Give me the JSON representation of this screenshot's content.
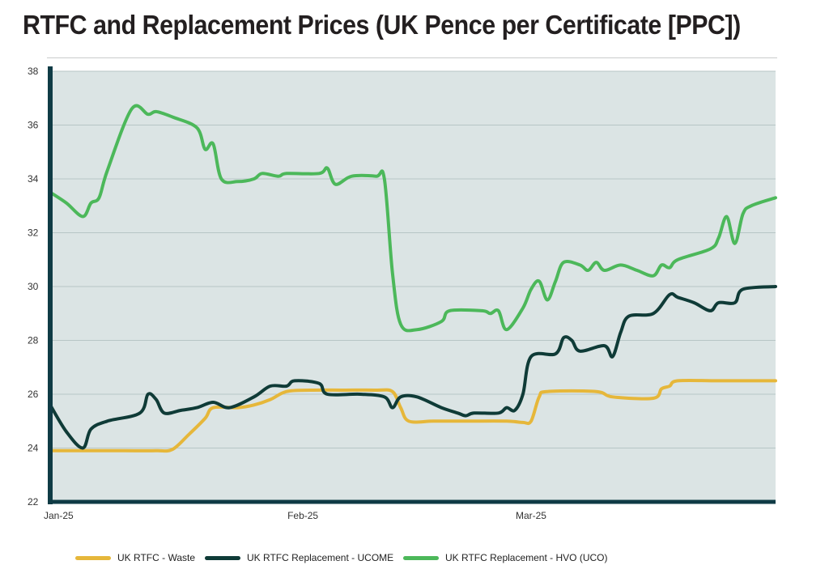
{
  "page": {
    "title": "RTFC and Replacement Prices (UK Pence per Certificate [PPC])"
  },
  "colors": {
    "plot_bg": "#dbe4e4",
    "axis": "#0f3b45",
    "grid": "#b7c6c6"
  },
  "chart_data": {
    "type": "line",
    "title": "RTFC and Replacement Prices (UK Pence per Certificate [PPC])",
    "xlabel": "",
    "ylabel": "",
    "x_range": [
      "2025-01-01",
      "2025-03-31"
    ],
    "x_ticks": [
      {
        "date": "2025-01-01",
        "label": "Jan-25"
      },
      {
        "date": "2025-02-01",
        "label": "Feb-25"
      },
      {
        "date": "2025-03-01",
        "label": "Mar-25"
      }
    ],
    "ylim": [
      22,
      38
    ],
    "y_ticks": [
      22,
      24,
      26,
      28,
      30,
      32,
      34,
      36,
      38
    ],
    "grid": true,
    "legend_position": "bottom",
    "series": [
      {
        "name": "UK RTFC - Waste",
        "color": "#e6b73a",
        "points": [
          [
            "2025-01-01",
            23.9
          ],
          [
            "2025-01-06",
            23.9
          ],
          [
            "2025-01-10",
            23.9
          ],
          [
            "2025-01-14",
            23.9
          ],
          [
            "2025-01-16",
            23.95
          ],
          [
            "2025-01-18",
            24.5
          ],
          [
            "2025-01-20",
            25.1
          ],
          [
            "2025-01-21",
            25.5
          ],
          [
            "2025-01-24",
            25.5
          ],
          [
            "2025-01-26",
            25.6
          ],
          [
            "2025-01-28",
            25.8
          ],
          [
            "2025-01-30",
            26.1
          ],
          [
            "2025-02-02",
            26.15
          ],
          [
            "2025-02-06",
            26.15
          ],
          [
            "2025-02-10",
            26.15
          ],
          [
            "2025-02-12",
            26.1
          ],
          [
            "2025-02-13",
            25.5
          ],
          [
            "2025-02-14",
            25.0
          ],
          [
            "2025-02-17",
            25.0
          ],
          [
            "2025-02-21",
            25.0
          ],
          [
            "2025-02-26",
            25.0
          ],
          [
            "2025-02-28",
            24.95
          ],
          [
            "2025-03-01",
            25.0
          ],
          [
            "2025-03-02",
            25.9
          ],
          [
            "2025-03-03",
            26.1
          ],
          [
            "2025-03-09",
            26.1
          ],
          [
            "2025-03-11",
            25.9
          ],
          [
            "2025-03-16",
            25.85
          ],
          [
            "2025-03-17",
            26.2
          ],
          [
            "2025-03-18",
            26.3
          ],
          [
            "2025-03-19",
            26.5
          ],
          [
            "2025-03-24",
            26.5
          ],
          [
            "2025-03-31",
            26.5
          ]
        ]
      },
      {
        "name": "UK RTFC Replacement - UCOME",
        "color": "#0f3b37",
        "points": [
          [
            "2025-01-01",
            25.6
          ],
          [
            "2025-01-03",
            24.6
          ],
          [
            "2025-01-05",
            24.0
          ],
          [
            "2025-01-06",
            24.7
          ],
          [
            "2025-01-08",
            25.0
          ],
          [
            "2025-01-12",
            25.3
          ],
          [
            "2025-01-13",
            26.0
          ],
          [
            "2025-01-14",
            25.8
          ],
          [
            "2025-01-15",
            25.3
          ],
          [
            "2025-01-17",
            25.4
          ],
          [
            "2025-01-19",
            25.5
          ],
          [
            "2025-01-21",
            25.7
          ],
          [
            "2025-01-23",
            25.5
          ],
          [
            "2025-01-26",
            25.9
          ],
          [
            "2025-01-28",
            26.3
          ],
          [
            "2025-01-30",
            26.3
          ],
          [
            "2025-01-31",
            26.5
          ],
          [
            "2025-02-03",
            26.4
          ],
          [
            "2025-02-04",
            26.0
          ],
          [
            "2025-02-08",
            26.0
          ],
          [
            "2025-02-11",
            25.9
          ],
          [
            "2025-02-12",
            25.5
          ],
          [
            "2025-02-13",
            25.9
          ],
          [
            "2025-02-15",
            25.9
          ],
          [
            "2025-02-18",
            25.5
          ],
          [
            "2025-02-20",
            25.3
          ],
          [
            "2025-02-21",
            25.2
          ],
          [
            "2025-02-22",
            25.3
          ],
          [
            "2025-02-25",
            25.3
          ],
          [
            "2025-02-26",
            25.5
          ],
          [
            "2025-02-27",
            25.4
          ],
          [
            "2025-02-28",
            26.0
          ],
          [
            "2025-03-01",
            27.4
          ],
          [
            "2025-03-04",
            27.5
          ],
          [
            "2025-03-05",
            28.1
          ],
          [
            "2025-03-06",
            28.0
          ],
          [
            "2025-03-07",
            27.6
          ],
          [
            "2025-03-10",
            27.8
          ],
          [
            "2025-03-11",
            27.4
          ],
          [
            "2025-03-12",
            28.3
          ],
          [
            "2025-03-13",
            28.9
          ],
          [
            "2025-03-16",
            29.0
          ],
          [
            "2025-03-18",
            29.7
          ],
          [
            "2025-03-19",
            29.6
          ],
          [
            "2025-03-21",
            29.4
          ],
          [
            "2025-03-23",
            29.1
          ],
          [
            "2025-03-24",
            29.4
          ],
          [
            "2025-03-26",
            29.4
          ],
          [
            "2025-03-27",
            29.9
          ],
          [
            "2025-03-31",
            30.0
          ]
        ]
      },
      {
        "name": "UK RTFC Replacement - HVO (UCO)",
        "color": "#4cb85a",
        "points": [
          [
            "2025-01-01",
            33.5
          ],
          [
            "2025-01-03",
            33.1
          ],
          [
            "2025-01-05",
            32.6
          ],
          [
            "2025-01-06",
            33.1
          ],
          [
            "2025-01-07",
            33.3
          ],
          [
            "2025-01-08",
            34.3
          ],
          [
            "2025-01-11",
            36.6
          ],
          [
            "2025-01-13",
            36.4
          ],
          [
            "2025-01-14",
            36.5
          ],
          [
            "2025-01-16",
            36.3
          ],
          [
            "2025-01-19",
            35.9
          ],
          [
            "2025-01-20",
            35.1
          ],
          [
            "2025-01-21",
            35.3
          ],
          [
            "2025-01-22",
            34.0
          ],
          [
            "2025-01-24",
            33.9
          ],
          [
            "2025-01-26",
            34.0
          ],
          [
            "2025-01-27",
            34.2
          ],
          [
            "2025-01-29",
            34.1
          ],
          [
            "2025-01-30",
            34.2
          ],
          [
            "2025-02-03",
            34.2
          ],
          [
            "2025-02-04",
            34.4
          ],
          [
            "2025-02-05",
            33.8
          ],
          [
            "2025-02-07",
            34.1
          ],
          [
            "2025-02-10",
            34.1
          ],
          [
            "2025-02-11",
            34.0
          ],
          [
            "2025-02-12",
            30.5
          ],
          [
            "2025-02-13",
            28.6
          ],
          [
            "2025-02-15",
            28.4
          ],
          [
            "2025-02-18",
            28.7
          ],
          [
            "2025-02-19",
            29.1
          ],
          [
            "2025-02-23",
            29.1
          ],
          [
            "2025-02-24",
            29.0
          ],
          [
            "2025-02-25",
            29.1
          ],
          [
            "2025-02-26",
            28.4
          ],
          [
            "2025-02-28",
            29.2
          ],
          [
            "2025-03-01",
            29.9
          ],
          [
            "2025-03-02",
            30.2
          ],
          [
            "2025-03-03",
            29.5
          ],
          [
            "2025-03-04",
            30.2
          ],
          [
            "2025-03-05",
            30.9
          ],
          [
            "2025-03-07",
            30.8
          ],
          [
            "2025-03-08",
            30.6
          ],
          [
            "2025-03-09",
            30.9
          ],
          [
            "2025-03-10",
            30.6
          ],
          [
            "2025-03-12",
            30.8
          ],
          [
            "2025-03-14",
            30.6
          ],
          [
            "2025-03-16",
            30.4
          ],
          [
            "2025-03-17",
            30.8
          ],
          [
            "2025-03-18",
            30.7
          ],
          [
            "2025-03-19",
            31.0
          ],
          [
            "2025-03-23",
            31.4
          ],
          [
            "2025-03-24",
            31.8
          ],
          [
            "2025-03-25",
            32.6
          ],
          [
            "2025-03-26",
            31.6
          ],
          [
            "2025-03-27",
            32.7
          ],
          [
            "2025-03-28",
            33.0
          ],
          [
            "2025-03-31",
            33.3
          ]
        ]
      }
    ]
  }
}
